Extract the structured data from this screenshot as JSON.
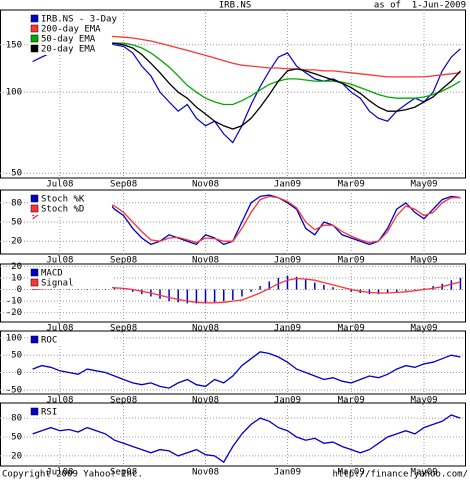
{
  "title": "IRB.NS",
  "as_of": "as of  1-Jun-2009",
  "copyright": "Copyright 2009 Yahoo! Inc.",
  "source": "http://finance.yahoo.com/",
  "chart_data": [
    {
      "type": "line",
      "log_scale": true,
      "grid": true,
      "legend": "upper left",
      "categories": [
        null,
        null,
        null,
        "Jul08",
        null,
        null,
        null,
        null,
        null,
        null,
        "Sep08",
        null,
        null,
        null,
        null,
        null,
        null,
        null,
        null,
        "Nov08",
        null,
        null,
        null,
        null,
        null,
        null,
        null,
        null,
        "Jan09",
        null,
        null,
        null,
        null,
        null,
        null,
        "Mar09",
        null,
        null,
        null,
        null,
        null,
        null,
        null,
        "May09",
        null,
        null,
        null,
        null
      ],
      "ylim": [
        48,
        202
      ],
      "yticks": [
        50,
        100,
        150
      ],
      "series": [
        {
          "name": "IRB.NS - 3-Day",
          "color": "#0000cc",
          "values": [
            130,
            135,
            140,
            145,
            148,
            150,
            152,
            150,
            155,
            150,
            148,
            140,
            125,
            115,
            100,
            92,
            85,
            90,
            80,
            75,
            78,
            70,
            65,
            75,
            90,
            105,
            120,
            135,
            140,
            125,
            118,
            112,
            110,
            112,
            108,
            100,
            95,
            85,
            80,
            78,
            85,
            90,
            95,
            92,
            100,
            120,
            135,
            145
          ]
        },
        {
          "name": "200-day EMA",
          "color": "#ff3333",
          "values": [
            155,
            157,
            158,
            159,
            160,
            161,
            161,
            161,
            161,
            161,
            160,
            159,
            157,
            155,
            152,
            149,
            146,
            143,
            140,
            137,
            134,
            131,
            128,
            126,
            125,
            124,
            123,
            123,
            122,
            122,
            121,
            121,
            120,
            120,
            119,
            118,
            117,
            116,
            115,
            114,
            114,
            114,
            114,
            114,
            115,
            116,
            117,
            118
          ]
        },
        {
          "name": "50-day EMA",
          "color": "#00aa00",
          "values": [
            null,
            null,
            null,
            145,
            147,
            148,
            150,
            151,
            152,
            152,
            152,
            150,
            146,
            140,
            132,
            124,
            115,
            106,
            100,
            95,
            92,
            90,
            90,
            93,
            97,
            102,
            107,
            110,
            112,
            112,
            111,
            110,
            110,
            110,
            109,
            107,
            104,
            101,
            98,
            96,
            95,
            95,
            95,
            96,
            98,
            101,
            105,
            110
          ]
        },
        {
          "name": "20-day EMA",
          "color": "#000000",
          "values": [
            null,
            null,
            null,
            null,
            null,
            148,
            150,
            151,
            152,
            152,
            150,
            146,
            138,
            128,
            118,
            108,
            100,
            95,
            88,
            83,
            78,
            75,
            73,
            75,
            80,
            88,
            98,
            110,
            120,
            122,
            120,
            117,
            114,
            111,
            108,
            104,
            99,
            93,
            88,
            85,
            85,
            86,
            88,
            92,
            96,
            103,
            110,
            120
          ]
        }
      ]
    },
    {
      "type": "line",
      "grid": true,
      "legend": "upper left",
      "categories": [
        null,
        null,
        null,
        "Jul08",
        null,
        null,
        null,
        null,
        null,
        null,
        "Sep08",
        null,
        null,
        null,
        null,
        null,
        null,
        null,
        null,
        "Nov08",
        null,
        null,
        null,
        null,
        null,
        null,
        null,
        null,
        "Jan09",
        null,
        null,
        null,
        null,
        null,
        null,
        "Mar09",
        null,
        null,
        null,
        null,
        null,
        null,
        null,
        "May09",
        null,
        null,
        null,
        null
      ],
      "ylim": [
        0,
        100
      ],
      "yticks": [
        20,
        50,
        80
      ],
      "series": [
        {
          "name": "Stoch %K",
          "color": "#0000cc",
          "values": [
            60,
            70,
            80,
            85,
            75,
            65,
            70,
            80,
            85,
            70,
            60,
            40,
            25,
            15,
            20,
            30,
            25,
            20,
            15,
            30,
            25,
            15,
            20,
            50,
            80,
            90,
            92,
            88,
            80,
            70,
            40,
            30,
            50,
            45,
            30,
            25,
            20,
            15,
            20,
            40,
            70,
            80,
            65,
            55,
            70,
            85,
            90,
            88
          ]
        },
        {
          "name": "Stoch %D",
          "color": "#ff3333",
          "values": [
            55,
            65,
            75,
            82,
            78,
            70,
            70,
            75,
            80,
            75,
            65,
            50,
            35,
            22,
            20,
            25,
            26,
            22,
            18,
            25,
            24,
            20,
            20,
            40,
            65,
            85,
            90,
            88,
            82,
            72,
            50,
            38,
            45,
            45,
            35,
            28,
            22,
            18,
            20,
            35,
            60,
            75,
            70,
            60,
            65,
            80,
            88,
            88
          ]
        }
      ]
    },
    {
      "type": "line",
      "grid": true,
      "legend": "upper left",
      "categories": [
        null,
        null,
        null,
        "Jul08",
        null,
        null,
        null,
        null,
        null,
        null,
        "Sep08",
        null,
        null,
        null,
        null,
        null,
        null,
        null,
        null,
        "Nov08",
        null,
        null,
        null,
        null,
        null,
        null,
        null,
        null,
        "Jan09",
        null,
        null,
        null,
        null,
        null,
        null,
        "Mar09",
        null,
        null,
        null,
        null,
        null,
        null,
        null,
        "May09",
        null,
        null,
        null,
        null
      ],
      "ylim": [
        -28,
        22
      ],
      "yticks": [
        -20,
        -10,
        0,
        10,
        20
      ],
      "series": [
        {
          "name": "MACD",
          "color": "#0000cc",
          "type": "bar",
          "values": [
            0,
            1,
            2,
            3,
            3,
            3,
            3,
            2,
            2,
            1,
            0,
            -2,
            -4,
            -6,
            -8,
            -10,
            -11,
            -12,
            -12,
            -12,
            -11,
            -10,
            -9,
            -6,
            -2,
            3,
            7,
            10,
            12,
            11,
            9,
            6,
            4,
            2,
            0,
            -2,
            -3,
            -4,
            -4,
            -3,
            -2,
            -1,
            0,
            1,
            3,
            5,
            8,
            10
          ]
        },
        {
          "name": "Signal",
          "color": "#ff3333",
          "values": [
            0,
            0.5,
            1,
            2,
            2.5,
            3,
            3,
            2.5,
            2,
            1.5,
            1,
            0,
            -1.5,
            -3,
            -5,
            -7,
            -8.5,
            -10,
            -11,
            -11.5,
            -11.5,
            -11,
            -10,
            -9,
            -6,
            -3,
            1,
            5,
            8,
            9.5,
            9,
            8,
            6,
            4,
            2,
            0,
            -1.5,
            -2.5,
            -3,
            -3,
            -2.5,
            -2,
            -1,
            0,
            1,
            2.5,
            4.5,
            6.5
          ]
        }
      ]
    },
    {
      "type": "line",
      "grid": true,
      "legend": "upper left",
      "categories": [
        null,
        null,
        null,
        "Jul08",
        null,
        null,
        null,
        null,
        null,
        null,
        "Sep08",
        null,
        null,
        null,
        null,
        null,
        null,
        null,
        null,
        "Nov08",
        null,
        null,
        null,
        null,
        null,
        null,
        null,
        null,
        "Jan09",
        null,
        null,
        null,
        null,
        null,
        null,
        "Mar09",
        null,
        null,
        null,
        null,
        null,
        null,
        null,
        "May09",
        null,
        null,
        null,
        null
      ],
      "ylim": [
        -62,
        120
      ],
      "yticks": [
        -50,
        0,
        50,
        100
      ],
      "series": [
        {
          "name": "ROC",
          "color": "#0000cc",
          "values": [
            10,
            20,
            15,
            5,
            0,
            -5,
            10,
            5,
            0,
            -10,
            -20,
            -30,
            -35,
            -30,
            -40,
            -45,
            -30,
            -20,
            -35,
            -40,
            -20,
            -30,
            -10,
            20,
            40,
            60,
            55,
            45,
            30,
            10,
            0,
            -10,
            -20,
            -15,
            -25,
            -30,
            -20,
            -10,
            -15,
            -5,
            10,
            20,
            15,
            25,
            30,
            40,
            50,
            45
          ]
        }
      ]
    },
    {
      "type": "line",
      "grid": true,
      "legend": "upper left",
      "categories": [
        null,
        null,
        null,
        "Jul08",
        null,
        null,
        null,
        null,
        null,
        null,
        "Sep08",
        null,
        null,
        null,
        null,
        null,
        null,
        null,
        null,
        "Nov08",
        null,
        null,
        null,
        null,
        null,
        null,
        null,
        null,
        "Jan09",
        null,
        null,
        null,
        null,
        null,
        null,
        "Mar09",
        null,
        null,
        null,
        null,
        null,
        null,
        null,
        "May09",
        null,
        null,
        null,
        null
      ],
      "ylim": [
        4,
        104
      ],
      "yticks": [
        20,
        50,
        80
      ],
      "series": [
        {
          "name": "RSI",
          "color": "#0000cc",
          "values": [
            55,
            60,
            65,
            60,
            62,
            58,
            65,
            60,
            55,
            45,
            40,
            35,
            30,
            25,
            30,
            28,
            20,
            25,
            30,
            22,
            20,
            10,
            35,
            55,
            70,
            80,
            75,
            65,
            60,
            50,
            45,
            48,
            40,
            42,
            35,
            30,
            25,
            30,
            40,
            50,
            55,
            60,
            55,
            65,
            70,
            75,
            85,
            80
          ]
        }
      ]
    }
  ]
}
